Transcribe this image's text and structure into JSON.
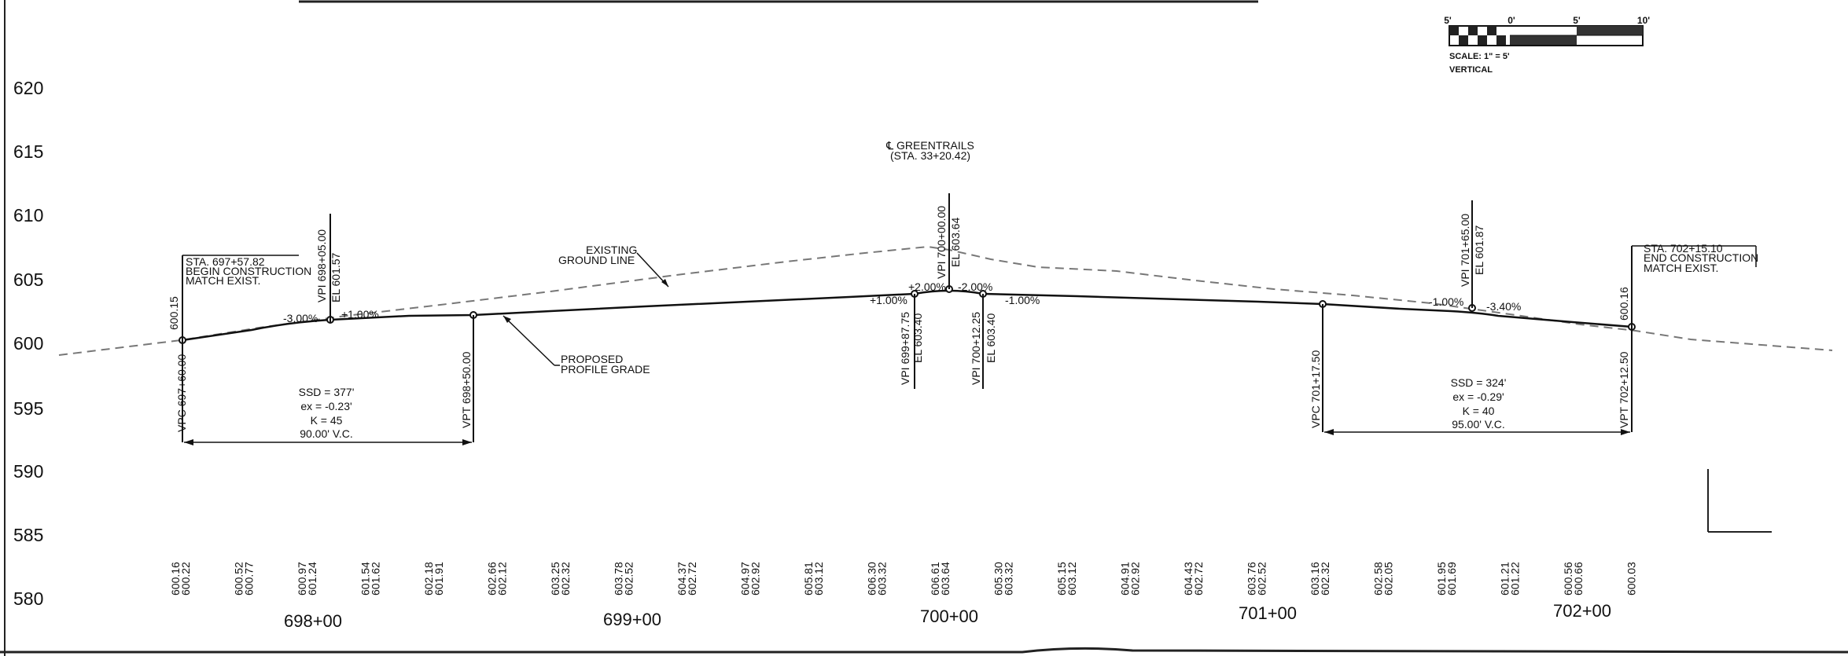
{
  "scale_bar": {
    "ticks": [
      "5'",
      "0'",
      "5'",
      "10'"
    ],
    "scale_text": "SCALE: 1\" = 5'",
    "orientation": "VERTICAL"
  },
  "y_axis": {
    "labels": [
      "620",
      "615",
      "610",
      "605",
      "600",
      "595",
      "590",
      "585",
      "580"
    ]
  },
  "stations": [
    "698+00",
    "699+00",
    "700+00",
    "701+00",
    "702+00"
  ],
  "elevation_pairs": [
    [
      "600.16",
      "600.22"
    ],
    [
      "600.52",
      "600.77"
    ],
    [
      "600.97",
      "601.24"
    ],
    [
      "601.54",
      "601.62"
    ],
    [
      "602.18",
      "601.91"
    ],
    [
      "602.66",
      "602.12"
    ],
    [
      "603.25",
      "602.32"
    ],
    [
      "603.78",
      "602.52"
    ],
    [
      "604.37",
      "602.72"
    ],
    [
      "604.97",
      "602.92"
    ],
    [
      "605.81",
      "603.12"
    ],
    [
      "606.30",
      "603.32"
    ],
    [
      "606.61",
      "603.64"
    ],
    [
      "605.30",
      "603.32"
    ],
    [
      "605.15",
      "603.12"
    ],
    [
      "604.91",
      "602.92"
    ],
    [
      "604.43",
      "602.72"
    ],
    [
      "603.76",
      "602.52"
    ],
    [
      "603.16",
      "602.32"
    ],
    [
      "602.58",
      "602.05"
    ],
    [
      "601.95",
      "601.69"
    ],
    [
      "601.21",
      "601.22"
    ],
    [
      "600.56",
      "600.66"
    ],
    [
      "600.03",
      ""
    ]
  ],
  "annotations": {
    "begin": [
      "STA. 697+57.82",
      "BEGIN CONSTRUCTION",
      "MATCH EXIST."
    ],
    "begin_elev": "600.15",
    "end": [
      "STA. 702+15.10",
      "END CONSTRUCTION",
      "MATCH EXIST."
    ],
    "end_elev": "600.16",
    "greentrails": [
      "℄ GREENTRAILS",
      "(STA. 33+20.42)"
    ],
    "existing_ground": [
      "EXISTING",
      "GROUND LINE"
    ],
    "proposed_grade": [
      "PROPOSED",
      "PROFILE GRADE"
    ]
  },
  "vertical_labels": {
    "vpc1": "VPC 697+60.00",
    "vpi1": "VPI 698+05.00",
    "vpi1_el": "EL 601.57",
    "vpt1": "VPT 698+50.00",
    "vpi2": "VPI 700+00.00",
    "vpi2_el": "EL 603.64",
    "vpi_left": "VPI 699+87.75",
    "vpi_left_el": "EL 603.40",
    "vpi_right": "VPI 700+12.25",
    "vpi_right_el": "EL 603.40",
    "vpc2": "VPC 701+17.50",
    "vpi3": "VPI 701+65.00",
    "vpi3_el": "EL 601.87",
    "vpt2": "VPT 702+12.50"
  },
  "grades": {
    "g1": "-3.00%",
    "g2": "+1.00%",
    "g3": "+1.00%",
    "g4": "+2.00%",
    "g5": "-2.00%",
    "g6": "-1.00%",
    "g7": "-1.00%",
    "g8": "-3.40%"
  },
  "curve1": {
    "lines": [
      "SSD = 377'",
      "ex = -0.23'",
      "K = 45"
    ],
    "vc": "90.00' V.C."
  },
  "curve2": {
    "lines": [
      "SSD = 324'",
      "ex = -0.29'",
      "K = 40"
    ],
    "vc": "95.00' V.C."
  },
  "chart_data": {
    "type": "line",
    "title": "",
    "xlabel": "",
    "ylabel": "",
    "ylim": [
      580,
      620
    ],
    "x": [
      "697+60",
      "698+05",
      "698+50",
      "699+87.75",
      "700+00",
      "700+12.25",
      "701+17.50",
      "701+65",
      "702+12.50"
    ],
    "series": [
      {
        "name": "EXISTING GROUND LINE",
        "values": [
          600.16,
          600.97,
          602.18,
          606.3,
          606.61,
          605.3,
          603.16,
          601.95,
          600.56
        ]
      },
      {
        "name": "PROPOSED PROFILE GRADE",
        "values": [
          600.22,
          601.57,
          602.12,
          603.4,
          603.64,
          603.4,
          602.32,
          601.87,
          600.66
        ]
      }
    ]
  }
}
